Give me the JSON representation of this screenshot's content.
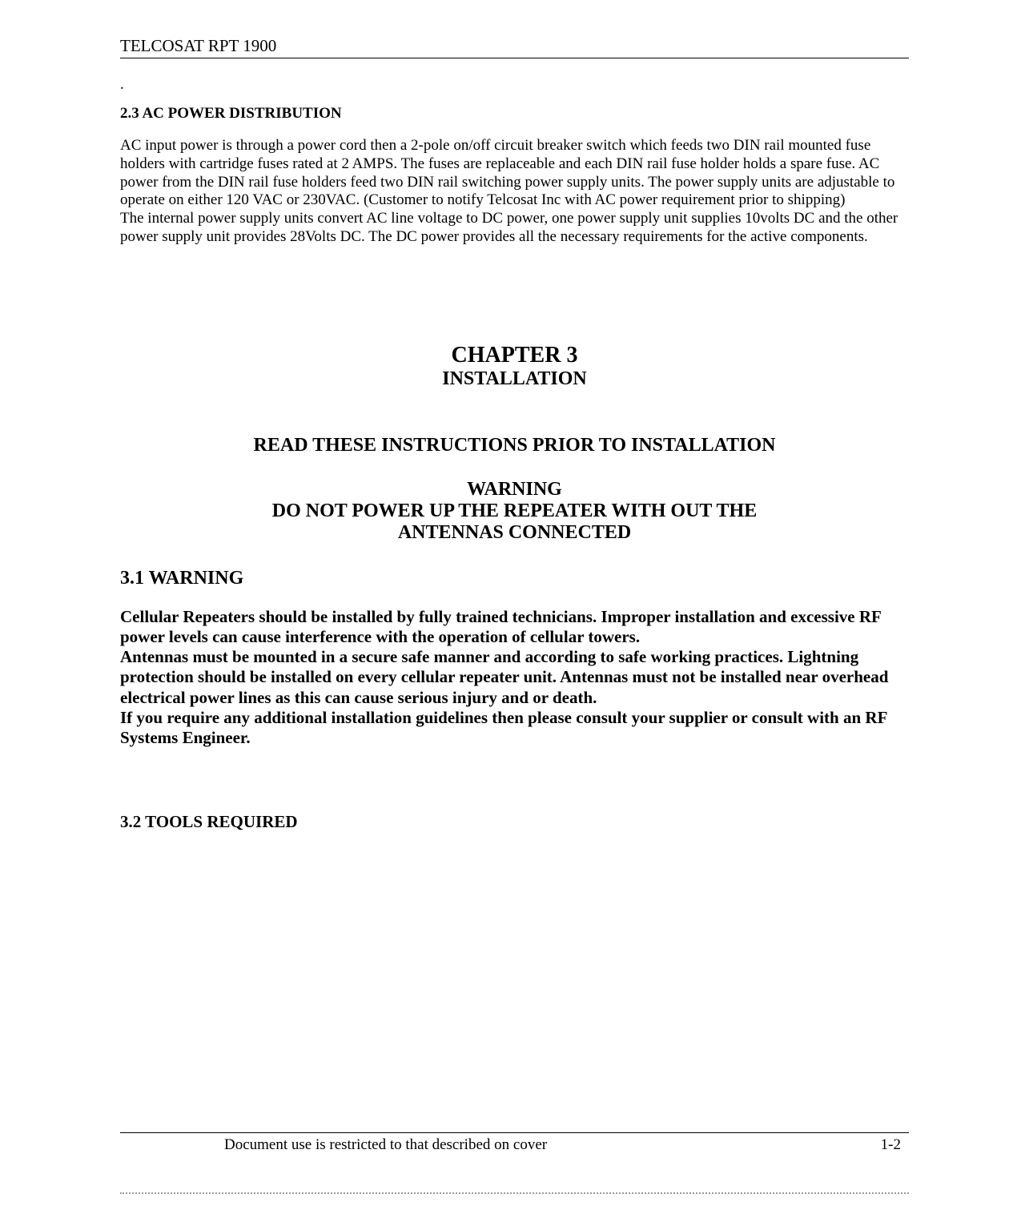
{
  "header": {
    "title": "TELCOSAT RPT 1900"
  },
  "dot": ".",
  "section2_3": {
    "heading": "2.3 AC POWER DISTRIBUTION",
    "para1": "AC input power is through a power cord then a  2-pole on/off circuit breaker switch which feeds two DIN rail mounted fuse holders with cartridge fuses rated at  2 AMPS. The fuses are replaceable and each DIN rail fuse holder holds a spare fuse. AC power from the DIN rail fuse holders feed two DIN rail switching power supply units. The power supply units are adjustable to operate on either 120 VAC or 230VAC. (Customer to notify Telcosat Inc with AC power requirement prior to shipping)",
    "para2": "The internal power supply units convert AC line voltage to DC power, one power supply unit supplies 10volts DC and the other power supply unit provides 28Volts DC. The DC power provides all the necessary requirements for the active components."
  },
  "chapter": {
    "title": "CHAPTER 3",
    "subtitle": "INSTALLATION"
  },
  "read_heading": "READ THESE INSTRUCTIONS PRIOR TO INSTALLATION",
  "warning_block": {
    "title": "WARNING",
    "line1": "DO NOT POWER UP THE REPEATER WITH OUT THE",
    "line2": "ANTENNAS CONNECTED"
  },
  "section3_1": {
    "heading": "3.1 WARNING",
    "para1": "Cellular Repeaters should be installed by fully trained technicians. Improper installation and excessive RF power levels can cause interference with the operation of cellular towers.",
    "para2": "Antennas must be mounted in a secure safe manner and according to safe working practices. Lightning protection should be installed on every cellular repeater unit. Antennas must not be installed near overhead electrical power lines as this can cause serious injury and or death.",
    "para3": "If you require any additional installation guidelines then please consult your supplier or consult with an RF Systems Engineer."
  },
  "section3_2": {
    "heading": "3.2 TOOLS REQUIRED"
  },
  "footer": {
    "text": "Document use is restricted to that described on cover",
    "page": "1-2"
  }
}
